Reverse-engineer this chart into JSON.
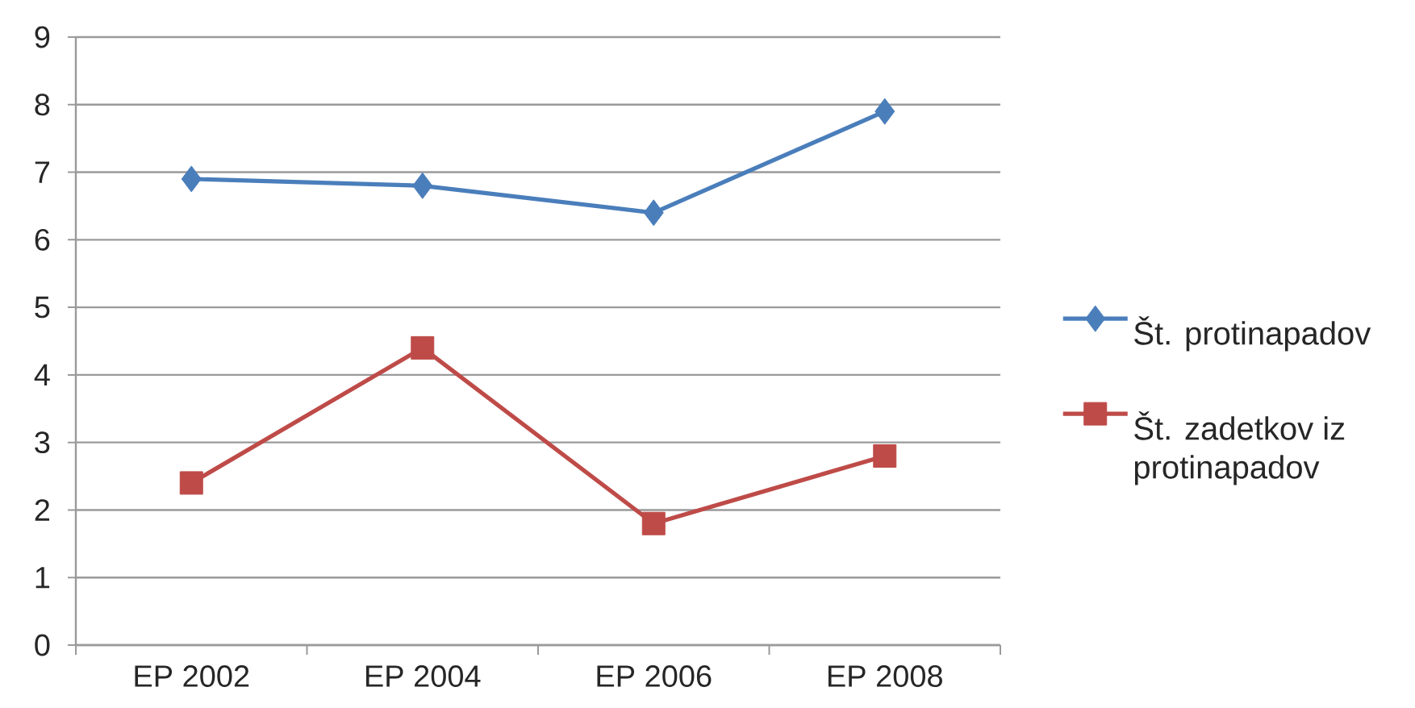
{
  "chart_data": {
    "type": "line",
    "categories": [
      "EP 2002",
      "EP 2004",
      "EP 2006",
      "EP 2008"
    ],
    "series": [
      {
        "name": "Št. protinapadov",
        "color": "#4a7ebb",
        "marker": "diamond",
        "values": [
          6.9,
          6.8,
          6.4,
          7.9
        ]
      },
      {
        "name": "Št. zadetkov iz protinapadov",
        "color": "#be4b48",
        "marker": "square",
        "values": [
          2.4,
          4.4,
          1.8,
          2.8
        ]
      }
    ],
    "ylim": [
      0,
      9
    ],
    "yticks": [
      0,
      1,
      2,
      3,
      4,
      5,
      6,
      7,
      8,
      9
    ],
    "grid": "y",
    "legend": "right",
    "line_style": "solid"
  }
}
